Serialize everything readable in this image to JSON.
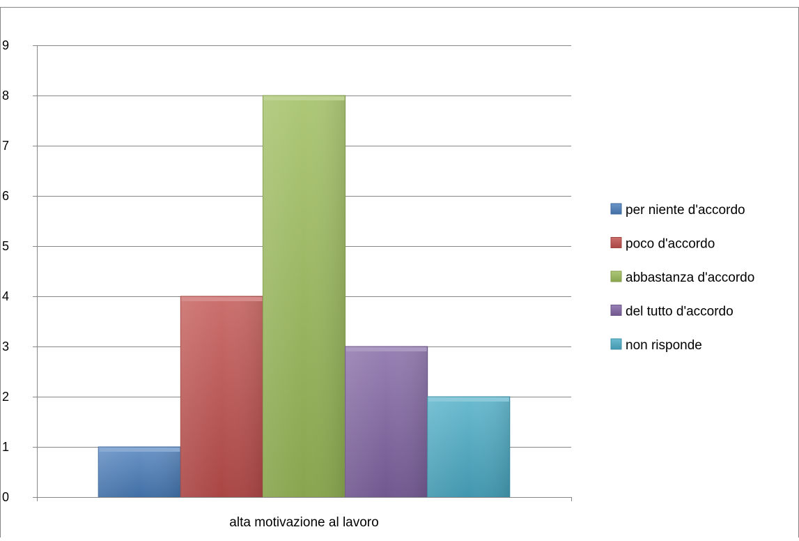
{
  "chart_data": {
    "type": "bar",
    "title": "",
    "xlabel": "",
    "ylabel": "",
    "categories": [
      "alta motivazione al lavoro"
    ],
    "series": [
      {
        "name": "per niente d'accordo",
        "values": [
          1
        ],
        "color": "#4a7ebb"
      },
      {
        "name": "poco d'accordo",
        "values": [
          4
        ],
        "color": "#c0504d"
      },
      {
        "name": "abbastanza d'accordo",
        "values": [
          8
        ],
        "color": "#9bbb59"
      },
      {
        "name": "del tutto d'accordo",
        "values": [
          3
        ],
        "color": "#8064a2"
      },
      {
        "name": "non risponde",
        "values": [
          2
        ],
        "color": "#4bacc6"
      }
    ],
    "ylim": [
      0,
      9
    ],
    "yticks": [
      "0",
      "1",
      "2",
      "3",
      "4",
      "5",
      "6",
      "7",
      "8",
      "9"
    ],
    "grid": true,
    "legend_position": "right"
  }
}
